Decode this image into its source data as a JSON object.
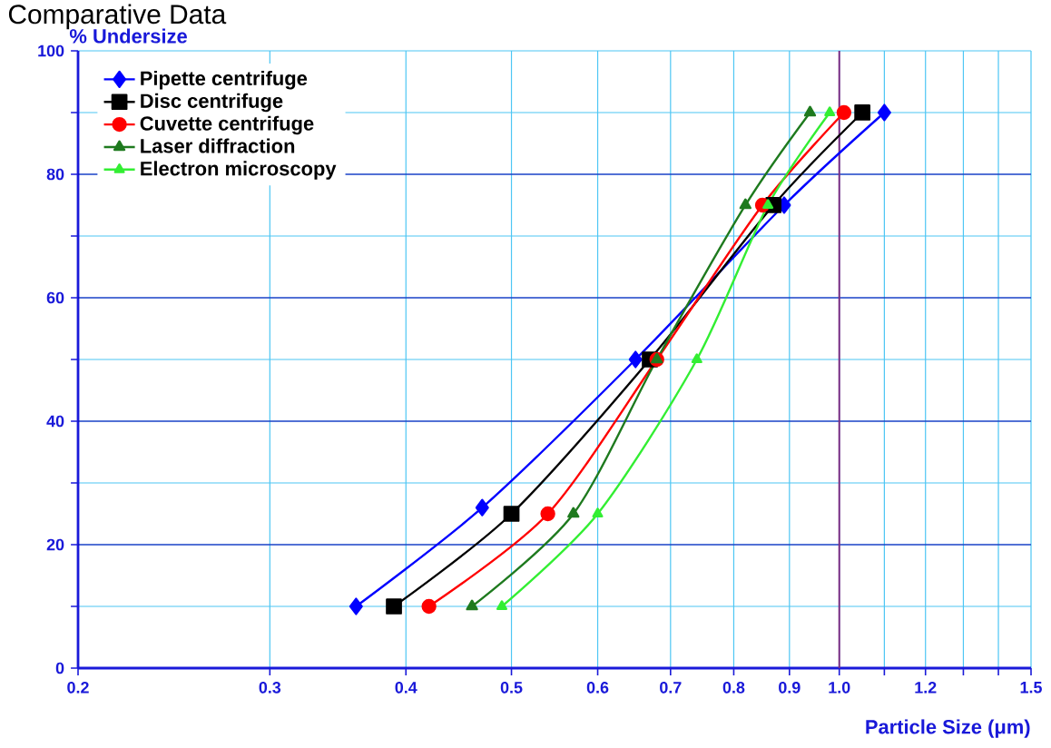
{
  "chart_data": {
    "type": "line",
    "title": "Comparative Data",
    "xlabel": "Particle Size (μm)",
    "ylabel": "% Undersize",
    "log": "x",
    "grid": true,
    "legend": "top left",
    "xlim": [
      0.2,
      1.5
    ],
    "ylim": [
      0,
      100
    ],
    "xticks": [
      0.2,
      0.3,
      0.4,
      0.5,
      0.6,
      0.7,
      0.8,
      0.9,
      {
        "value": 1,
        "label": "1.0"
      },
      {
        "value": 1.1,
        "label": null
      },
      1.2,
      {
        "value": 1.3,
        "label": null
      },
      {
        "value": 1.4,
        "label": null
      },
      1.5
    ],
    "yticks": [
      0,
      {
        "value": 10,
        "label": null
      },
      20,
      {
        "value": 30,
        "label": null
      },
      40,
      {
        "value": 50,
        "label": null
      },
      60,
      {
        "value": 70,
        "label": null
      },
      80,
      {
        "value": 90,
        "label": null
      },
      100
    ],
    "ref_lines": [
      {
        "axis": "x",
        "value": 1,
        "color": "#7b2c83"
      }
    ],
    "series": [
      {
        "name": "Pipette centrifuge",
        "color": "#0000ff",
        "marker": "diamond",
        "x": [
          0.36,
          0.47,
          0.65,
          0.89,
          1.1
        ],
        "values": [
          10,
          26,
          50,
          75,
          90
        ]
      },
      {
        "name": "Disc centrifuge",
        "color": "#000000",
        "marker": "square",
        "x": [
          0.39,
          0.5,
          0.67,
          0.87,
          1.05
        ],
        "values": [
          10,
          25,
          50,
          75,
          90
        ]
      },
      {
        "name": "Cuvette centrifuge",
        "color": "#ff0000",
        "marker": "circle",
        "x": [
          0.42,
          0.54,
          0.68,
          0.85,
          1.01
        ],
        "values": [
          10,
          25,
          50,
          75,
          90
        ]
      },
      {
        "name": "Laser diffraction",
        "color": "#1e7a1e",
        "marker": "triangle",
        "x": [
          0.46,
          0.57,
          0.68,
          0.82,
          0.94
        ],
        "values": [
          10,
          25,
          50,
          75,
          90
        ]
      },
      {
        "name": "Electron microscopy",
        "color": "#33ee33",
        "marker": "triangle",
        "x": [
          0.49,
          0.6,
          0.74,
          0.86,
          0.98
        ],
        "values": [
          10,
          25,
          50,
          75,
          90
        ]
      }
    ]
  }
}
